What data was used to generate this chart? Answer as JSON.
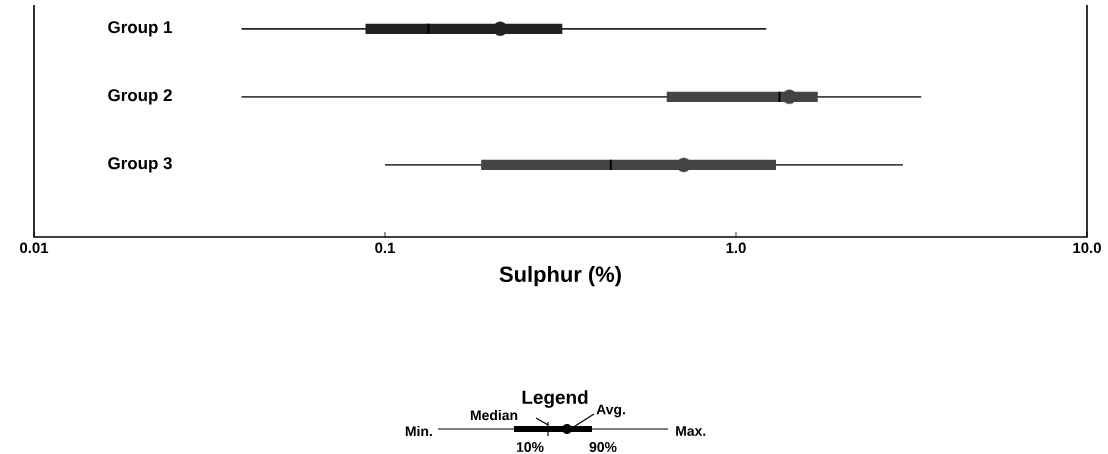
{
  "chart_data": {
    "type": "box",
    "orientation": "horizontal",
    "log": "x",
    "xlabel": "Sulphur (%)",
    "categories": [
      "Group 1",
      "Group 2",
      "Group 3"
    ],
    "boxes": [
      {
        "low": 0.039,
        "q1": 0.088,
        "median": 0.133,
        "q3": 0.32,
        "high": 1.22,
        "mean": 0.213
      },
      {
        "low": 0.039,
        "q1": 0.635,
        "median": 1.33,
        "q3": 1.71,
        "high": 3.37,
        "mean": 1.42
      },
      {
        "low": 0.1,
        "q1": 0.188,
        "median": 0.44,
        "q3": 1.3,
        "high": 2.99,
        "mean": 0.71
      }
    ],
    "colors": [
      "#222222",
      "#444444",
      "#444444"
    ],
    "xlim": [
      0.01,
      10
    ],
    "xticks": [
      0.01,
      0.1,
      {
        "value": 1,
        "label": "1.0"
      },
      {
        "value": 10,
        "label": "10.0"
      }
    ],
    "legend_title": "Legend",
    "annotations": [
      "Min.",
      "Median",
      "Avg.",
      "Max.",
      "10%",
      "90%"
    ]
  }
}
